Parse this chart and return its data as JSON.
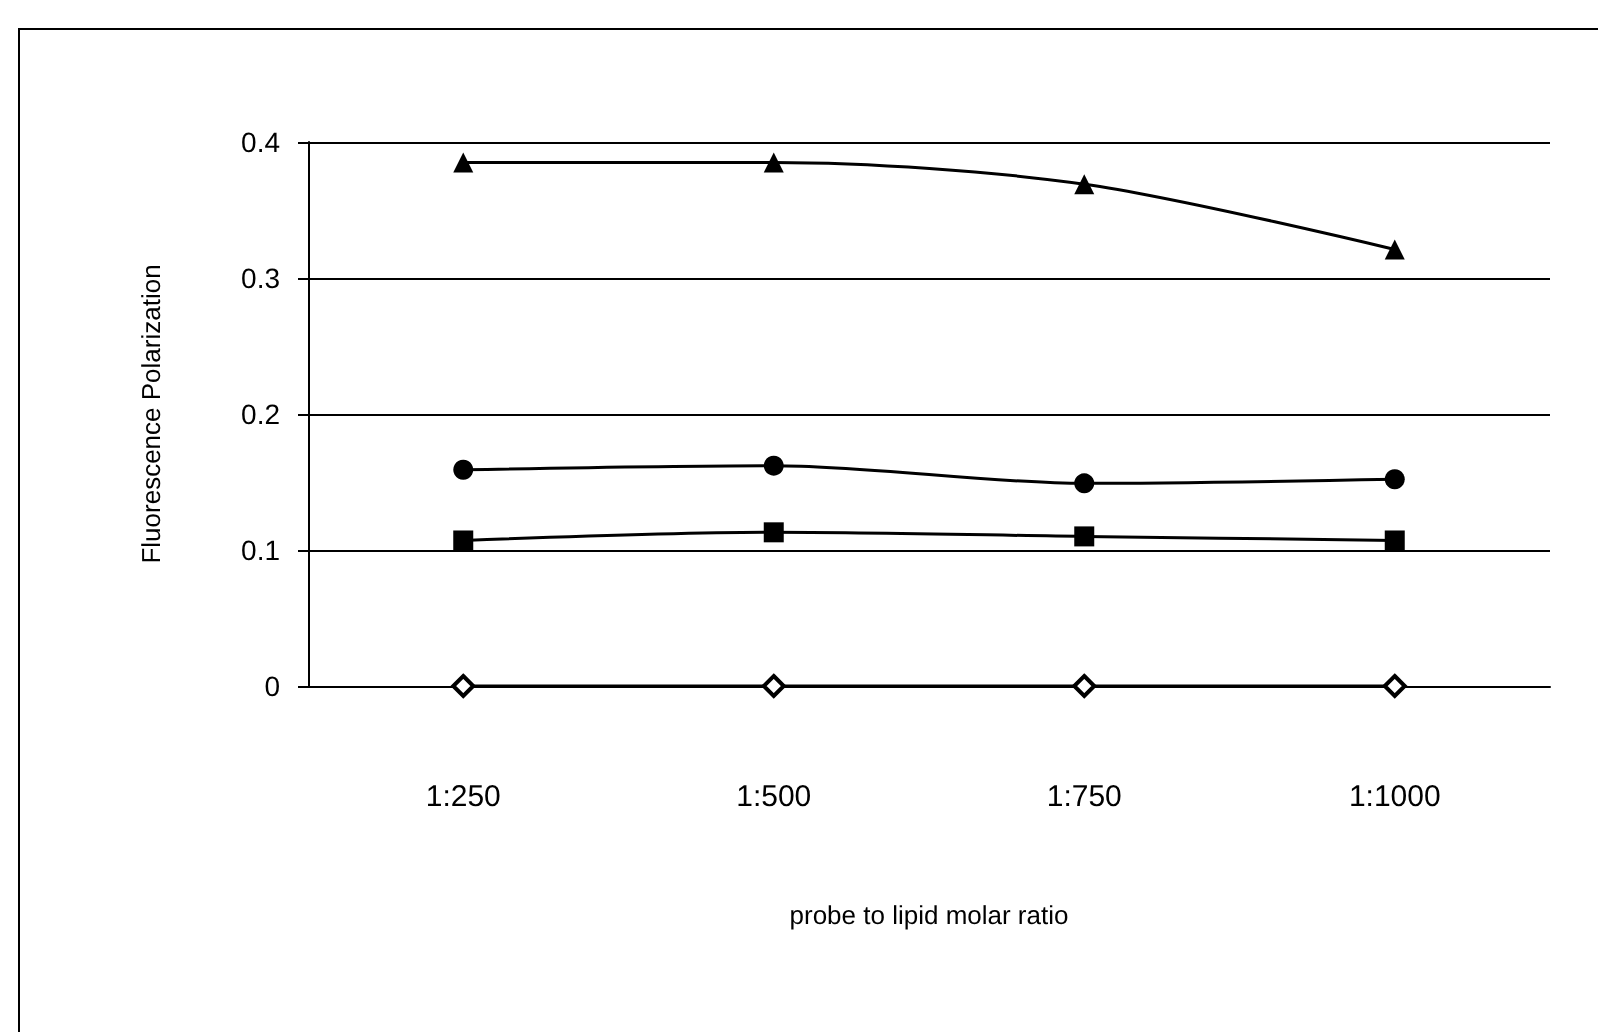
{
  "chart_data": {
    "type": "line",
    "xlabel": "probe to lipid molar ratio",
    "ylabel": "Fluorescence Polarization",
    "categories": [
      "1:250",
      "1:500",
      "1:750",
      "1:1000"
    ],
    "series": [
      {
        "color": "#000000",
        "marker": "triangle",
        "values": [
          0.385,
          0.385,
          0.369,
          0.321
        ]
      },
      {
        "color": "#000000",
        "marker": "circle",
        "values": [
          0.159,
          0.162,
          0.149,
          0.152
        ]
      },
      {
        "color": "#000000",
        "marker": "square",
        "values": [
          0.107,
          0.113,
          0.11,
          0.107
        ]
      },
      {
        "color": "#000000",
        "marker": "diamond",
        "values": [
          0,
          0,
          0,
          0
        ]
      }
    ],
    "ylim": [
      0,
      0.4
    ],
    "yticks": [
      0,
      0.1,
      0.2,
      0.3,
      0.4
    ],
    "grid": "y",
    "line_style": "solid"
  }
}
